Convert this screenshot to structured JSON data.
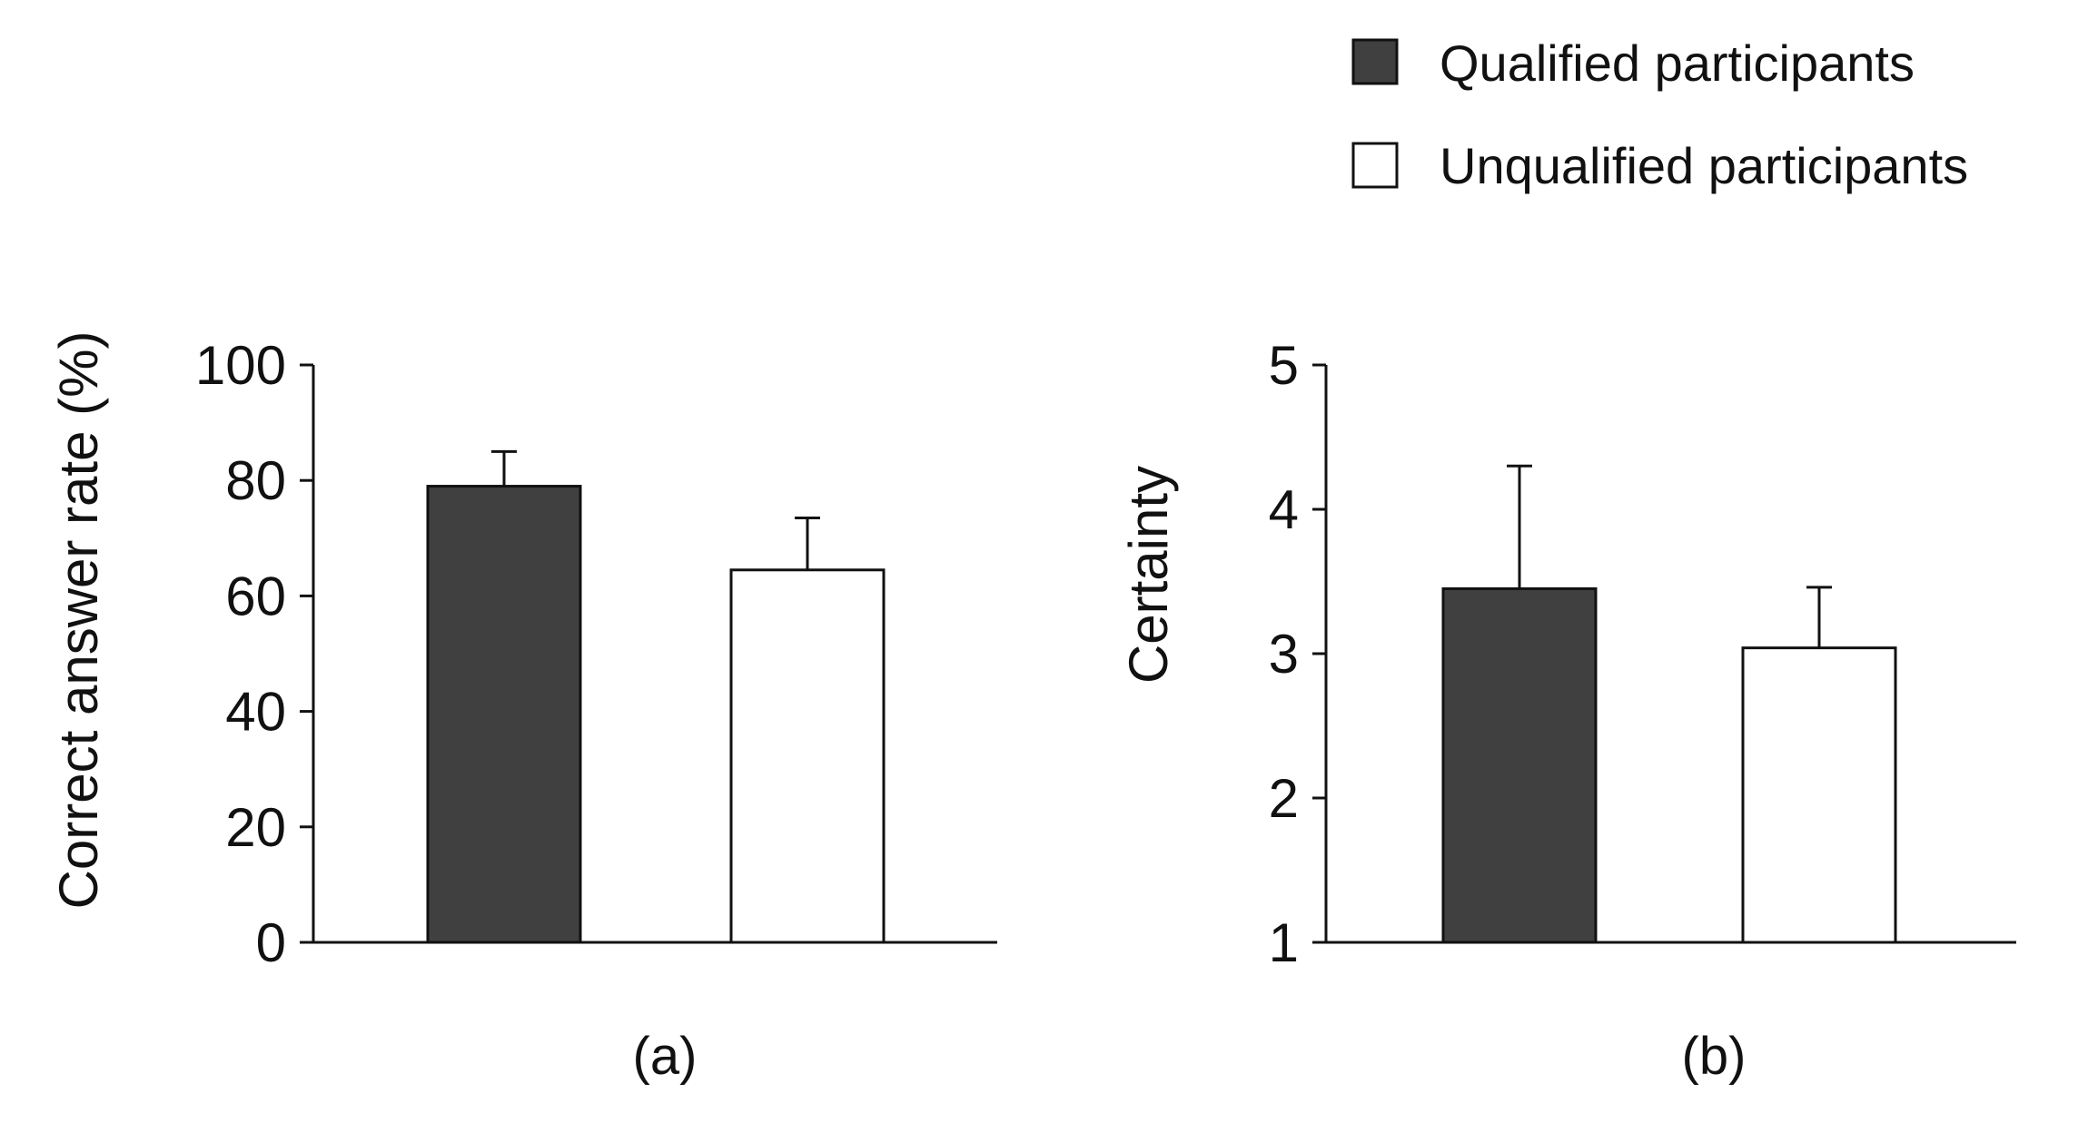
{
  "legend": {
    "items": [
      {
        "label": "Qualified participants",
        "color": "#404040"
      },
      {
        "label": "Unqualified participants",
        "color": "#ffffff"
      }
    ]
  },
  "chart_data": [
    {
      "type": "bar",
      "panel_label": "(a)",
      "xlabel": "",
      "ylabel": "Correct answer rate (%)",
      "ylim": [
        0,
        100
      ],
      "yticks": [
        0,
        20,
        40,
        60,
        80,
        100
      ],
      "grid": false,
      "series": [
        {
          "name": "Qualified participants",
          "value": 79,
          "error": 6,
          "color": "#404040"
        },
        {
          "name": "Unqualified participants",
          "value": 64.5,
          "error": 9,
          "color": "#ffffff"
        }
      ]
    },
    {
      "type": "bar",
      "panel_label": "(b)",
      "xlabel": "",
      "ylabel": "Certainty",
      "ylim": [
        1,
        5
      ],
      "yticks": [
        1,
        2,
        3,
        4,
        5
      ],
      "grid": false,
      "series": [
        {
          "name": "Qualified participants",
          "value": 3.45,
          "error": 0.85,
          "color": "#404040"
        },
        {
          "name": "Unqualified participants",
          "value": 3.04,
          "error": 0.42,
          "color": "#ffffff"
        }
      ]
    }
  ]
}
